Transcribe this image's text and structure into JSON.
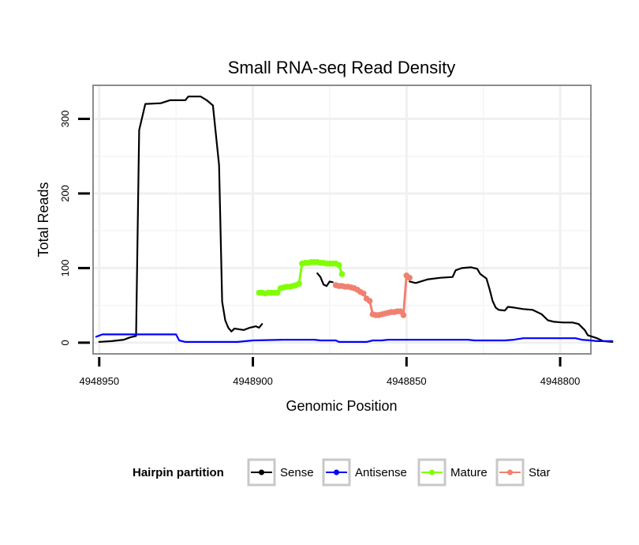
{
  "chart_data": {
    "type": "line",
    "title": "Small RNA-seq Read Density",
    "xlabel": "Genomic Position",
    "ylabel": "Total Reads",
    "x_reversed": true,
    "xlim": [
      4948952,
      4948790
    ],
    "ylim": [
      -15,
      345
    ],
    "x_ticks": [
      4948950,
      4948900,
      4948850,
      4948800
    ],
    "x_tick_labels": [
      "4948950",
      "4948900",
      "4948850",
      "4948800"
    ],
    "y_ticks": [
      0,
      100,
      200,
      300
    ],
    "y_tick_labels": [
      "0",
      "100",
      "200",
      "300"
    ],
    "grid": true,
    "legend": {
      "title": "Hairpin partition",
      "position": "bottom",
      "entries": [
        "Sense",
        "Antisense",
        "Mature",
        "Star"
      ]
    },
    "series": [
      {
        "name": "Sense",
        "color": "#000000",
        "markers": false,
        "points": [
          [
            4948950,
            1
          ],
          [
            4948946,
            2
          ],
          [
            4948942,
            4
          ],
          [
            4948940,
            7
          ],
          [
            4948938,
            9
          ],
          [
            4948937,
            285
          ],
          [
            4948935,
            320
          ],
          [
            4948930,
            321
          ],
          [
            4948927,
            325
          ],
          [
            4948922,
            325
          ],
          [
            4948921,
            330
          ],
          [
            4948917,
            330
          ],
          [
            4948915,
            325
          ],
          [
            4948913,
            318
          ],
          [
            4948911,
            238
          ],
          [
            4948910,
            55
          ],
          [
            4948909,
            30
          ],
          [
            4948908,
            20
          ],
          [
            4948907,
            15
          ],
          [
            4948906,
            19
          ],
          [
            4948903,
            17
          ],
          [
            4948901,
            20
          ],
          [
            4948899,
            22
          ],
          [
            4948898,
            20
          ],
          [
            4948897,
            25
          ]
        ]
      },
      {
        "name": "Sense",
        "color": "#000000",
        "markers": false,
        "points": [
          [
            4948879,
            93
          ],
          [
            4948878,
            88
          ],
          [
            4948877,
            78
          ],
          [
            4948876,
            76
          ],
          [
            4948875,
            82
          ],
          [
            4948874,
            81
          ]
        ]
      },
      {
        "name": "Sense",
        "color": "#000000",
        "markers": false,
        "points": [
          [
            4948849,
            82
          ],
          [
            4948847,
            80
          ],
          [
            4948843,
            85
          ],
          [
            4948839,
            87
          ],
          [
            4948835,
            88
          ],
          [
            4948834,
            97
          ],
          [
            4948832,
            100
          ],
          [
            4948829,
            101
          ],
          [
            4948827,
            99
          ],
          [
            4948826,
            92
          ],
          [
            4948824,
            86
          ],
          [
            4948823,
            72
          ],
          [
            4948822,
            56
          ],
          [
            4948821,
            47
          ],
          [
            4948820,
            44
          ],
          [
            4948818,
            43
          ],
          [
            4948817,
            48
          ],
          [
            4948815,
            47
          ],
          [
            4948812,
            45
          ],
          [
            4948809,
            44
          ],
          [
            4948806,
            38
          ],
          [
            4948804,
            30
          ],
          [
            4948802,
            28
          ],
          [
            4948799,
            27
          ],
          [
            4948796,
            27
          ],
          [
            4948794,
            25
          ],
          [
            4948792,
            17
          ],
          [
            4948791,
            10
          ],
          [
            4948788,
            6
          ],
          [
            4948786,
            2
          ],
          [
            4948783,
            1
          ]
        ]
      },
      {
        "name": "Antisense",
        "color": "#0000ff",
        "markers": false,
        "points": [
          [
            4948951,
            8
          ],
          [
            4948949,
            11
          ],
          [
            4948945,
            11
          ],
          [
            4948930,
            11
          ],
          [
            4948925,
            11
          ],
          [
            4948924,
            3
          ],
          [
            4948922,
            1
          ],
          [
            4948905,
            1
          ],
          [
            4948900,
            3
          ],
          [
            4948890,
            4
          ],
          [
            4948880,
            4
          ],
          [
            4948878,
            3
          ],
          [
            4948873,
            3
          ],
          [
            4948872,
            1
          ],
          [
            4948870,
            1
          ],
          [
            4948863,
            1
          ],
          [
            4948861,
            3
          ],
          [
            4948858,
            3
          ],
          [
            4948856,
            4
          ],
          [
            4948830,
            4
          ],
          [
            4948828,
            3
          ],
          [
            4948818,
            3
          ],
          [
            4948815,
            4
          ],
          [
            4948812,
            6
          ],
          [
            4948795,
            6
          ],
          [
            4948793,
            4
          ],
          [
            4948790,
            3
          ],
          [
            4948788,
            2
          ],
          [
            4948783,
            2
          ]
        ]
      },
      {
        "name": "Mature",
        "color": "#7fff00",
        "markers": true,
        "points": [
          [
            4948898,
            67
          ],
          [
            4948897,
            67
          ],
          [
            4948896,
            66
          ],
          [
            4948895,
            67
          ],
          [
            4948894,
            67
          ],
          [
            4948893,
            67
          ],
          [
            4948892,
            67
          ],
          [
            4948891,
            73
          ],
          [
            4948890,
            74
          ],
          [
            4948889,
            75
          ],
          [
            4948888,
            75
          ],
          [
            4948887,
            76
          ],
          [
            4948886,
            77
          ],
          [
            4948885,
            79
          ],
          [
            4948884,
            106
          ],
          [
            4948883,
            107
          ],
          [
            4948882,
            107
          ],
          [
            4948881,
            108
          ],
          [
            4948880,
            108
          ],
          [
            4948879,
            108
          ],
          [
            4948878,
            107
          ],
          [
            4948877,
            107
          ],
          [
            4948876,
            106
          ],
          [
            4948875,
            106
          ],
          [
            4948874,
            106
          ],
          [
            4948873,
            106
          ],
          [
            4948872,
            104
          ],
          [
            4948871,
            92
          ]
        ]
      },
      {
        "name": "Star",
        "color": "#f08070",
        "markers": true,
        "points": [
          [
            4948873,
            77
          ],
          [
            4948872,
            76
          ],
          [
            4948871,
            76
          ],
          [
            4948870,
            75
          ],
          [
            4948869,
            75
          ],
          [
            4948868,
            74
          ],
          [
            4948867,
            73
          ],
          [
            4948866,
            71
          ],
          [
            4948865,
            68
          ],
          [
            4948864,
            66
          ],
          [
            4948863,
            59
          ],
          [
            4948862,
            56
          ],
          [
            4948861,
            38
          ],
          [
            4948860,
            37
          ],
          [
            4948859,
            37
          ],
          [
            4948858,
            38
          ],
          [
            4948857,
            39
          ],
          [
            4948856,
            40
          ],
          [
            4948855,
            41
          ],
          [
            4948854,
            41
          ],
          [
            4948853,
            42
          ],
          [
            4948852,
            42
          ],
          [
            4948851,
            37
          ],
          [
            4948850,
            90
          ],
          [
            4948849,
            87
          ]
        ]
      }
    ]
  }
}
